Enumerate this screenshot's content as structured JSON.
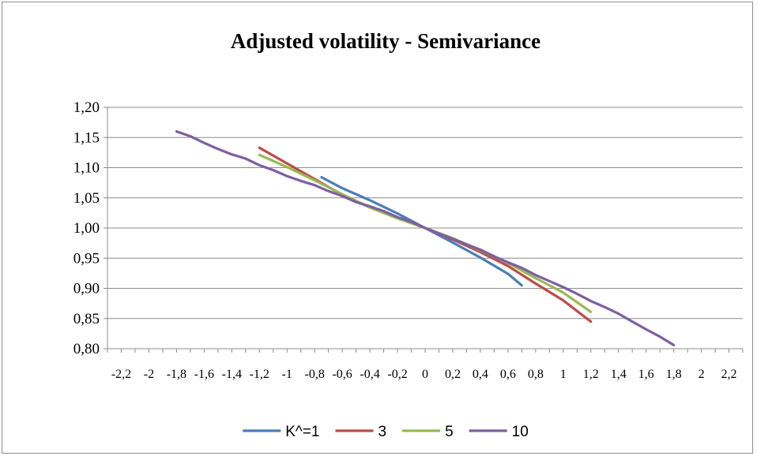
{
  "chart_data": {
    "type": "line",
    "title": "Adjusted volatility  - Semivariance",
    "xlabel": "",
    "ylabel": "",
    "xlim": [
      -2.3,
      2.3
    ],
    "ylim": [
      0.8,
      1.2
    ],
    "grid": true,
    "legend_position": "bottom",
    "y_ticks": [
      {
        "value": 0.8,
        "label": "0,80"
      },
      {
        "value": 0.85,
        "label": "0,85"
      },
      {
        "value": 0.9,
        "label": "0,90"
      },
      {
        "value": 0.95,
        "label": "0,95"
      },
      {
        "value": 1.0,
        "label": "1,00"
      },
      {
        "value": 1.05,
        "label": "1,05"
      },
      {
        "value": 1.1,
        "label": "1,10"
      },
      {
        "value": 1.15,
        "label": "1,15"
      },
      {
        "value": 1.2,
        "label": "1,20"
      }
    ],
    "x_ticks": [
      {
        "value": -2.2,
        "label": "-2,2"
      },
      {
        "value": -2.0,
        "label": "-2"
      },
      {
        "value": -1.8,
        "label": "-1,8"
      },
      {
        "value": -1.6,
        "label": "-1,6"
      },
      {
        "value": -1.4,
        "label": "-1,4"
      },
      {
        "value": -1.2,
        "label": "-1,2"
      },
      {
        "value": -1.0,
        "label": "-1"
      },
      {
        "value": -0.8,
        "label": "-0,8"
      },
      {
        "value": -0.6,
        "label": "-0,6"
      },
      {
        "value": -0.4,
        "label": "-0,4"
      },
      {
        "value": -0.2,
        "label": "-0,2"
      },
      {
        "value": 0.0,
        "label": "0"
      },
      {
        "value": 0.2,
        "label": "0,2"
      },
      {
        "value": 0.4,
        "label": "0,4"
      },
      {
        "value": 0.6,
        "label": "0,6"
      },
      {
        "value": 0.8,
        "label": "0,8"
      },
      {
        "value": 1.0,
        "label": "1"
      },
      {
        "value": 1.2,
        "label": "1,2"
      },
      {
        "value": 1.4,
        "label": "1,4"
      },
      {
        "value": 1.6,
        "label": "1,6"
      },
      {
        "value": 1.8,
        "label": "1,8"
      },
      {
        "value": 2.0,
        "label": "2"
      },
      {
        "value": 2.2,
        "label": "2,2"
      }
    ],
    "series": [
      {
        "name": "K^=1",
        "color": "#4a7ebb",
        "x": [
          -0.75,
          -0.6,
          -0.4,
          -0.2,
          0.0,
          0.2,
          0.4,
          0.6,
          0.7
        ],
        "y": [
          1.084,
          1.066,
          1.046,
          1.024,
          1.0,
          0.976,
          0.951,
          0.924,
          0.905
        ]
      },
      {
        "name": "3",
        "color": "#be4b48",
        "x": [
          -1.2,
          -1.0,
          -0.8,
          -0.6,
          -0.4,
          -0.2,
          0.0,
          0.2,
          0.4,
          0.6,
          0.8,
          1.0,
          1.2
        ],
        "y": [
          1.133,
          1.107,
          1.081,
          1.055,
          1.034,
          1.017,
          1.0,
          0.981,
          0.96,
          0.937,
          0.908,
          0.88,
          0.845
        ]
      },
      {
        "name": "5",
        "color": "#98b954",
        "x": [
          -1.2,
          -1.0,
          -0.8,
          -0.6,
          -0.4,
          -0.2,
          0.0,
          0.2,
          0.4,
          0.6,
          0.8,
          1.0,
          1.2
        ],
        "y": [
          1.121,
          1.101,
          1.079,
          1.056,
          1.034,
          1.016,
          1.0,
          0.983,
          0.963,
          0.942,
          0.917,
          0.893,
          0.861
        ]
      },
      {
        "name": "10",
        "color": "#7d5fa0",
        "x": [
          -1.8,
          -1.7,
          -1.6,
          -1.5,
          -1.4,
          -1.3,
          -1.2,
          -1.1,
          -1.0,
          -0.9,
          -0.8,
          -0.7,
          -0.6,
          -0.5,
          -0.4,
          -0.3,
          -0.2,
          -0.1,
          0.0,
          0.1,
          0.2,
          0.3,
          0.4,
          0.5,
          0.6,
          0.7,
          0.8,
          0.9,
          1.0,
          1.1,
          1.2,
          1.3,
          1.4,
          1.5,
          1.6,
          1.7,
          1.8
        ],
        "y": [
          1.16,
          1.152,
          1.141,
          1.131,
          1.122,
          1.115,
          1.104,
          1.096,
          1.086,
          1.078,
          1.071,
          1.061,
          1.053,
          1.043,
          1.036,
          1.028,
          1.018,
          1.01,
          1.0,
          0.991,
          0.982,
          0.973,
          0.964,
          0.953,
          0.943,
          0.934,
          0.922,
          0.912,
          0.902,
          0.891,
          0.879,
          0.869,
          0.858,
          0.845,
          0.832,
          0.82,
          0.806
        ]
      }
    ]
  }
}
